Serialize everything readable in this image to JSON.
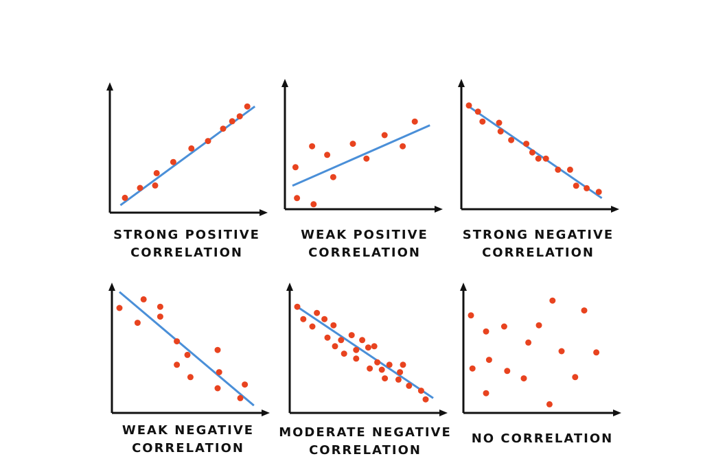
{
  "colors": {
    "point": "#e8431f",
    "trend_line": "#4a8fd8",
    "axis": "#111111"
  },
  "chart_data": [
    {
      "type": "scatter",
      "title_lines": [
        "STRONG POSITIVE",
        "CORRELATION"
      ],
      "grid": false,
      "xlim": [
        0,
        100
      ],
      "ylim": [
        0,
        100
      ],
      "points": [
        [
          10,
          12
        ],
        [
          20,
          20
        ],
        [
          30,
          22
        ],
        [
          31,
          32
        ],
        [
          42,
          41
        ],
        [
          54,
          52
        ],
        [
          65,
          58
        ],
        [
          75,
          68
        ],
        [
          81,
          74
        ],
        [
          86,
          78
        ],
        [
          91,
          86
        ]
      ],
      "trend_line": [
        [
          7,
          6
        ],
        [
          96,
          86
        ]
      ]
    },
    {
      "type": "scatter",
      "title_lines": [
        "WEAK POSITIVE",
        "CORRELATION"
      ],
      "grid": false,
      "xlim": [
        0,
        100
      ],
      "ylim": [
        0,
        100
      ],
      "points": [
        [
          7,
          34
        ],
        [
          8,
          9
        ],
        [
          18,
          51
        ],
        [
          19,
          4
        ],
        [
          28,
          44
        ],
        [
          32,
          26
        ],
        [
          45,
          53
        ],
        [
          54,
          41
        ],
        [
          66,
          60
        ],
        [
          78,
          51
        ],
        [
          86,
          71
        ]
      ],
      "trend_line": [
        [
          5,
          19
        ],
        [
          96,
          68
        ]
      ]
    },
    {
      "type": "scatter",
      "title_lines": [
        "STRONG NEGATIVE",
        "CORRELATION"
      ],
      "grid": false,
      "xlim": [
        0,
        100
      ],
      "ylim": [
        0,
        100
      ],
      "points": [
        [
          5,
          84
        ],
        [
          11,
          79
        ],
        [
          14,
          71
        ],
        [
          25,
          70
        ],
        [
          26,
          63
        ],
        [
          33,
          56
        ],
        [
          43,
          53
        ],
        [
          47,
          46
        ],
        [
          51,
          41
        ],
        [
          56,
          41
        ],
        [
          64,
          32
        ],
        [
          72,
          32
        ],
        [
          76,
          19
        ],
        [
          83,
          17
        ],
        [
          91,
          14
        ]
      ],
      "trend_line": [
        [
          4,
          84
        ],
        [
          93,
          9
        ]
      ]
    },
    {
      "type": "scatter",
      "title_lines": [
        "WEAK NEGATIVE",
        "CORRELATION"
      ],
      "grid": false,
      "xlim": [
        0,
        100
      ],
      "ylim": [
        0,
        100
      ],
      "points": [
        [
          5,
          85
        ],
        [
          17,
          73
        ],
        [
          21,
          92
        ],
        [
          32,
          86
        ],
        [
          32,
          78
        ],
        [
          43,
          58
        ],
        [
          43,
          39
        ],
        [
          50,
          47
        ],
        [
          52,
          29
        ],
        [
          70,
          51
        ],
        [
          71,
          33
        ],
        [
          70,
          20
        ],
        [
          85,
          12
        ],
        [
          88,
          23
        ]
      ],
      "trend_line": [
        [
          5,
          98
        ],
        [
          94,
          6
        ]
      ]
    },
    {
      "type": "scatter",
      "title_lines": [
        "MODERATE NEGATIVE",
        "CORRELATION"
      ],
      "grid": false,
      "xlim": [
        0,
        100
      ],
      "ylim": [
        0,
        100
      ],
      "points": [
        [
          5,
          86
        ],
        [
          9,
          76
        ],
        [
          15,
          70
        ],
        [
          18,
          81
        ],
        [
          23,
          76
        ],
        [
          25,
          61
        ],
        [
          29,
          71
        ],
        [
          30,
          54
        ],
        [
          34,
          59
        ],
        [
          36,
          48
        ],
        [
          41,
          63
        ],
        [
          44,
          44
        ],
        [
          44,
          51
        ],
        [
          48,
          59
        ],
        [
          52,
          53
        ],
        [
          53,
          36
        ],
        [
          56,
          54
        ],
        [
          58,
          41
        ],
        [
          61,
          35
        ],
        [
          63,
          28
        ],
        [
          66,
          39
        ],
        [
          72,
          27
        ],
        [
          73,
          33
        ],
        [
          75,
          39
        ],
        [
          79,
          22
        ],
        [
          87,
          18
        ],
        [
          90,
          11
        ]
      ],
      "trend_line": [
        [
          5,
          86
        ],
        [
          95,
          12
        ]
      ]
    },
    {
      "type": "scatter",
      "title_lines": [
        "NO CORRELATION"
      ],
      "grid": false,
      "xlim": [
        0,
        100
      ],
      "ylim": [
        0,
        100
      ],
      "points": [
        [
          5,
          79
        ],
        [
          6,
          36
        ],
        [
          15,
          66
        ],
        [
          17,
          43
        ],
        [
          15,
          16
        ],
        [
          27,
          70
        ],
        [
          29,
          34
        ],
        [
          40,
          28
        ],
        [
          43,
          57
        ],
        [
          50,
          71
        ],
        [
          59,
          91
        ],
        [
          57,
          7
        ],
        [
          65,
          50
        ],
        [
          74,
          29
        ],
        [
          80,
          83
        ],
        [
          88,
          49
        ]
      ],
      "trend_line": null
    }
  ]
}
